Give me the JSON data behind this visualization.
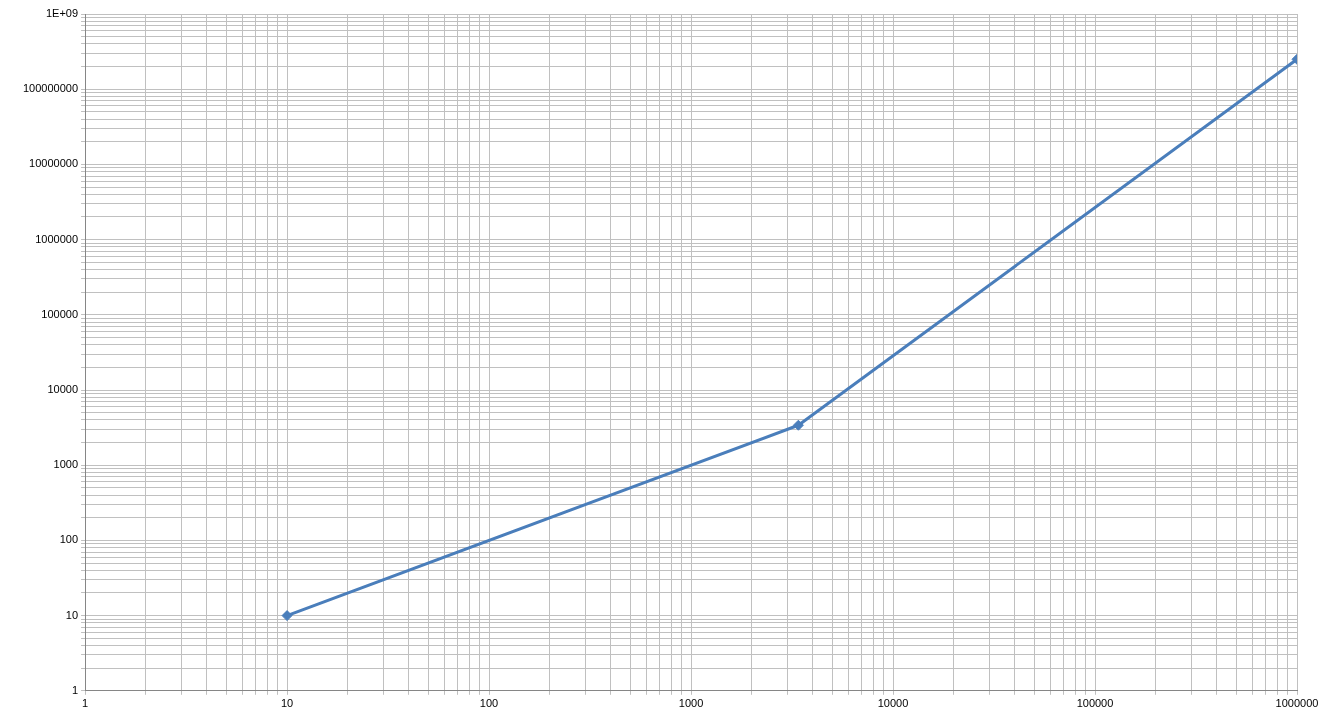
{
  "chart_data": {
    "type": "line",
    "x": [
      10,
      3400,
      1000000
    ],
    "series": [
      {
        "color": "#4a7ebb",
        "values": [
          10,
          3400,
          250000000
        ]
      }
    ],
    "log": "xy",
    "grid": true,
    "marker": "diamond",
    "line_style": "solid",
    "legend": false,
    "xlim": [
      1,
      1000000
    ],
    "ylim": [
      1,
      1000000000
    ],
    "xticks": [
      1,
      {
        "value": 2,
        "label": null
      },
      {
        "value": 3,
        "label": null
      },
      {
        "value": 4,
        "label": null
      },
      {
        "value": 5,
        "label": null
      },
      {
        "value": 6,
        "label": null
      },
      {
        "value": 7,
        "label": null
      },
      {
        "value": 8,
        "label": null
      },
      {
        "value": 9,
        "label": null
      },
      10,
      {
        "value": 20,
        "label": null
      },
      {
        "value": 30,
        "label": null
      },
      {
        "value": 40,
        "label": null
      },
      {
        "value": 50,
        "label": null
      },
      {
        "value": 60,
        "label": null
      },
      {
        "value": 70,
        "label": null
      },
      {
        "value": 80,
        "label": null
      },
      {
        "value": 90,
        "label": null
      },
      100,
      {
        "value": 200,
        "label": null
      },
      {
        "value": 300,
        "label": null
      },
      {
        "value": 400,
        "label": null
      },
      {
        "value": 500,
        "label": null
      },
      {
        "value": 600,
        "label": null
      },
      {
        "value": 700,
        "label": null
      },
      {
        "value": 800,
        "label": null
      },
      {
        "value": 900,
        "label": null
      },
      1000,
      {
        "value": 2000,
        "label": null
      },
      {
        "value": 3000,
        "label": null
      },
      {
        "value": 4000,
        "label": null
      },
      {
        "value": 5000,
        "label": null
      },
      {
        "value": 6000,
        "label": null
      },
      {
        "value": 7000,
        "label": null
      },
      {
        "value": 8000,
        "label": null
      },
      {
        "value": 9000,
        "label": null
      },
      10000,
      {
        "value": 20000,
        "label": null
      },
      {
        "value": 30000,
        "label": null
      },
      {
        "value": 40000,
        "label": null
      },
      {
        "value": 50000,
        "label": null
      },
      {
        "value": 60000,
        "label": null
      },
      {
        "value": 70000,
        "label": null
      },
      {
        "value": 80000,
        "label": null
      },
      {
        "value": 90000,
        "label": null
      },
      100000,
      {
        "value": 200000,
        "label": null
      },
      {
        "value": 300000,
        "label": null
      },
      {
        "value": 400000,
        "label": null
      },
      {
        "value": 500000,
        "label": null
      },
      {
        "value": 600000,
        "label": null
      },
      {
        "value": 700000,
        "label": null
      },
      {
        "value": 800000,
        "label": null
      },
      {
        "value": 900000,
        "label": null
      },
      1000000
    ],
    "yticks": [
      1,
      {
        "value": 2,
        "label": null
      },
      {
        "value": 3,
        "label": null
      },
      {
        "value": 4,
        "label": null
      },
      {
        "value": 5,
        "label": null
      },
      {
        "value": 6,
        "label": null
      },
      {
        "value": 7,
        "label": null
      },
      {
        "value": 8,
        "label": null
      },
      {
        "value": 9,
        "label": null
      },
      10,
      {
        "value": 20,
        "label": null
      },
      {
        "value": 30,
        "label": null
      },
      {
        "value": 40,
        "label": null
      },
      {
        "value": 50,
        "label": null
      },
      {
        "value": 60,
        "label": null
      },
      {
        "value": 70,
        "label": null
      },
      {
        "value": 80,
        "label": null
      },
      {
        "value": 90,
        "label": null
      },
      100,
      {
        "value": 200,
        "label": null
      },
      {
        "value": 300,
        "label": null
      },
      {
        "value": 400,
        "label": null
      },
      {
        "value": 500,
        "label": null
      },
      {
        "value": 600,
        "label": null
      },
      {
        "value": 700,
        "label": null
      },
      {
        "value": 800,
        "label": null
      },
      {
        "value": 900,
        "label": null
      },
      1000,
      {
        "value": 2000,
        "label": null
      },
      {
        "value": 3000,
        "label": null
      },
      {
        "value": 4000,
        "label": null
      },
      {
        "value": 5000,
        "label": null
      },
      {
        "value": 6000,
        "label": null
      },
      {
        "value": 7000,
        "label": null
      },
      {
        "value": 8000,
        "label": null
      },
      {
        "value": 9000,
        "label": null
      },
      10000,
      {
        "value": 20000,
        "label": null
      },
      {
        "value": 30000,
        "label": null
      },
      {
        "value": 40000,
        "label": null
      },
      {
        "value": 50000,
        "label": null
      },
      {
        "value": 60000,
        "label": null
      },
      {
        "value": 70000,
        "label": null
      },
      {
        "value": 80000,
        "label": null
      },
      {
        "value": 90000,
        "label": null
      },
      100000,
      {
        "value": 200000,
        "label": null
      },
      {
        "value": 300000,
        "label": null
      },
      {
        "value": 400000,
        "label": null
      },
      {
        "value": 500000,
        "label": null
      },
      {
        "value": 600000,
        "label": null
      },
      {
        "value": 700000,
        "label": null
      },
      {
        "value": 800000,
        "label": null
      },
      {
        "value": 900000,
        "label": null
      },
      1000000,
      {
        "value": 2000000,
        "label": null
      },
      {
        "value": 3000000,
        "label": null
      },
      {
        "value": 4000000,
        "label": null
      },
      {
        "value": 5000000,
        "label": null
      },
      {
        "value": 6000000,
        "label": null
      },
      {
        "value": 7000000,
        "label": null
      },
      {
        "value": 8000000,
        "label": null
      },
      {
        "value": 9000000,
        "label": null
      },
      10000000,
      {
        "value": 20000000,
        "label": null
      },
      {
        "value": 30000000,
        "label": null
      },
      {
        "value": 40000000,
        "label": null
      },
      {
        "value": 50000000,
        "label": null
      },
      {
        "value": 60000000,
        "label": null
      },
      {
        "value": 70000000,
        "label": null
      },
      {
        "value": 80000000,
        "label": null
      },
      {
        "value": 90000000,
        "label": null
      },
      100000000,
      {
        "value": 200000000,
        "label": null
      },
      {
        "value": 300000000,
        "label": null
      },
      {
        "value": 400000000,
        "label": null
      },
      {
        "value": 500000000,
        "label": null
      },
      {
        "value": 600000000,
        "label": null
      },
      {
        "value": 700000000,
        "label": null
      },
      {
        "value": 800000000,
        "label": null
      },
      {
        "value": 900000000,
        "label": null
      },
      {
        "value": 1000000000,
        "label": "1E+09"
      }
    ]
  }
}
